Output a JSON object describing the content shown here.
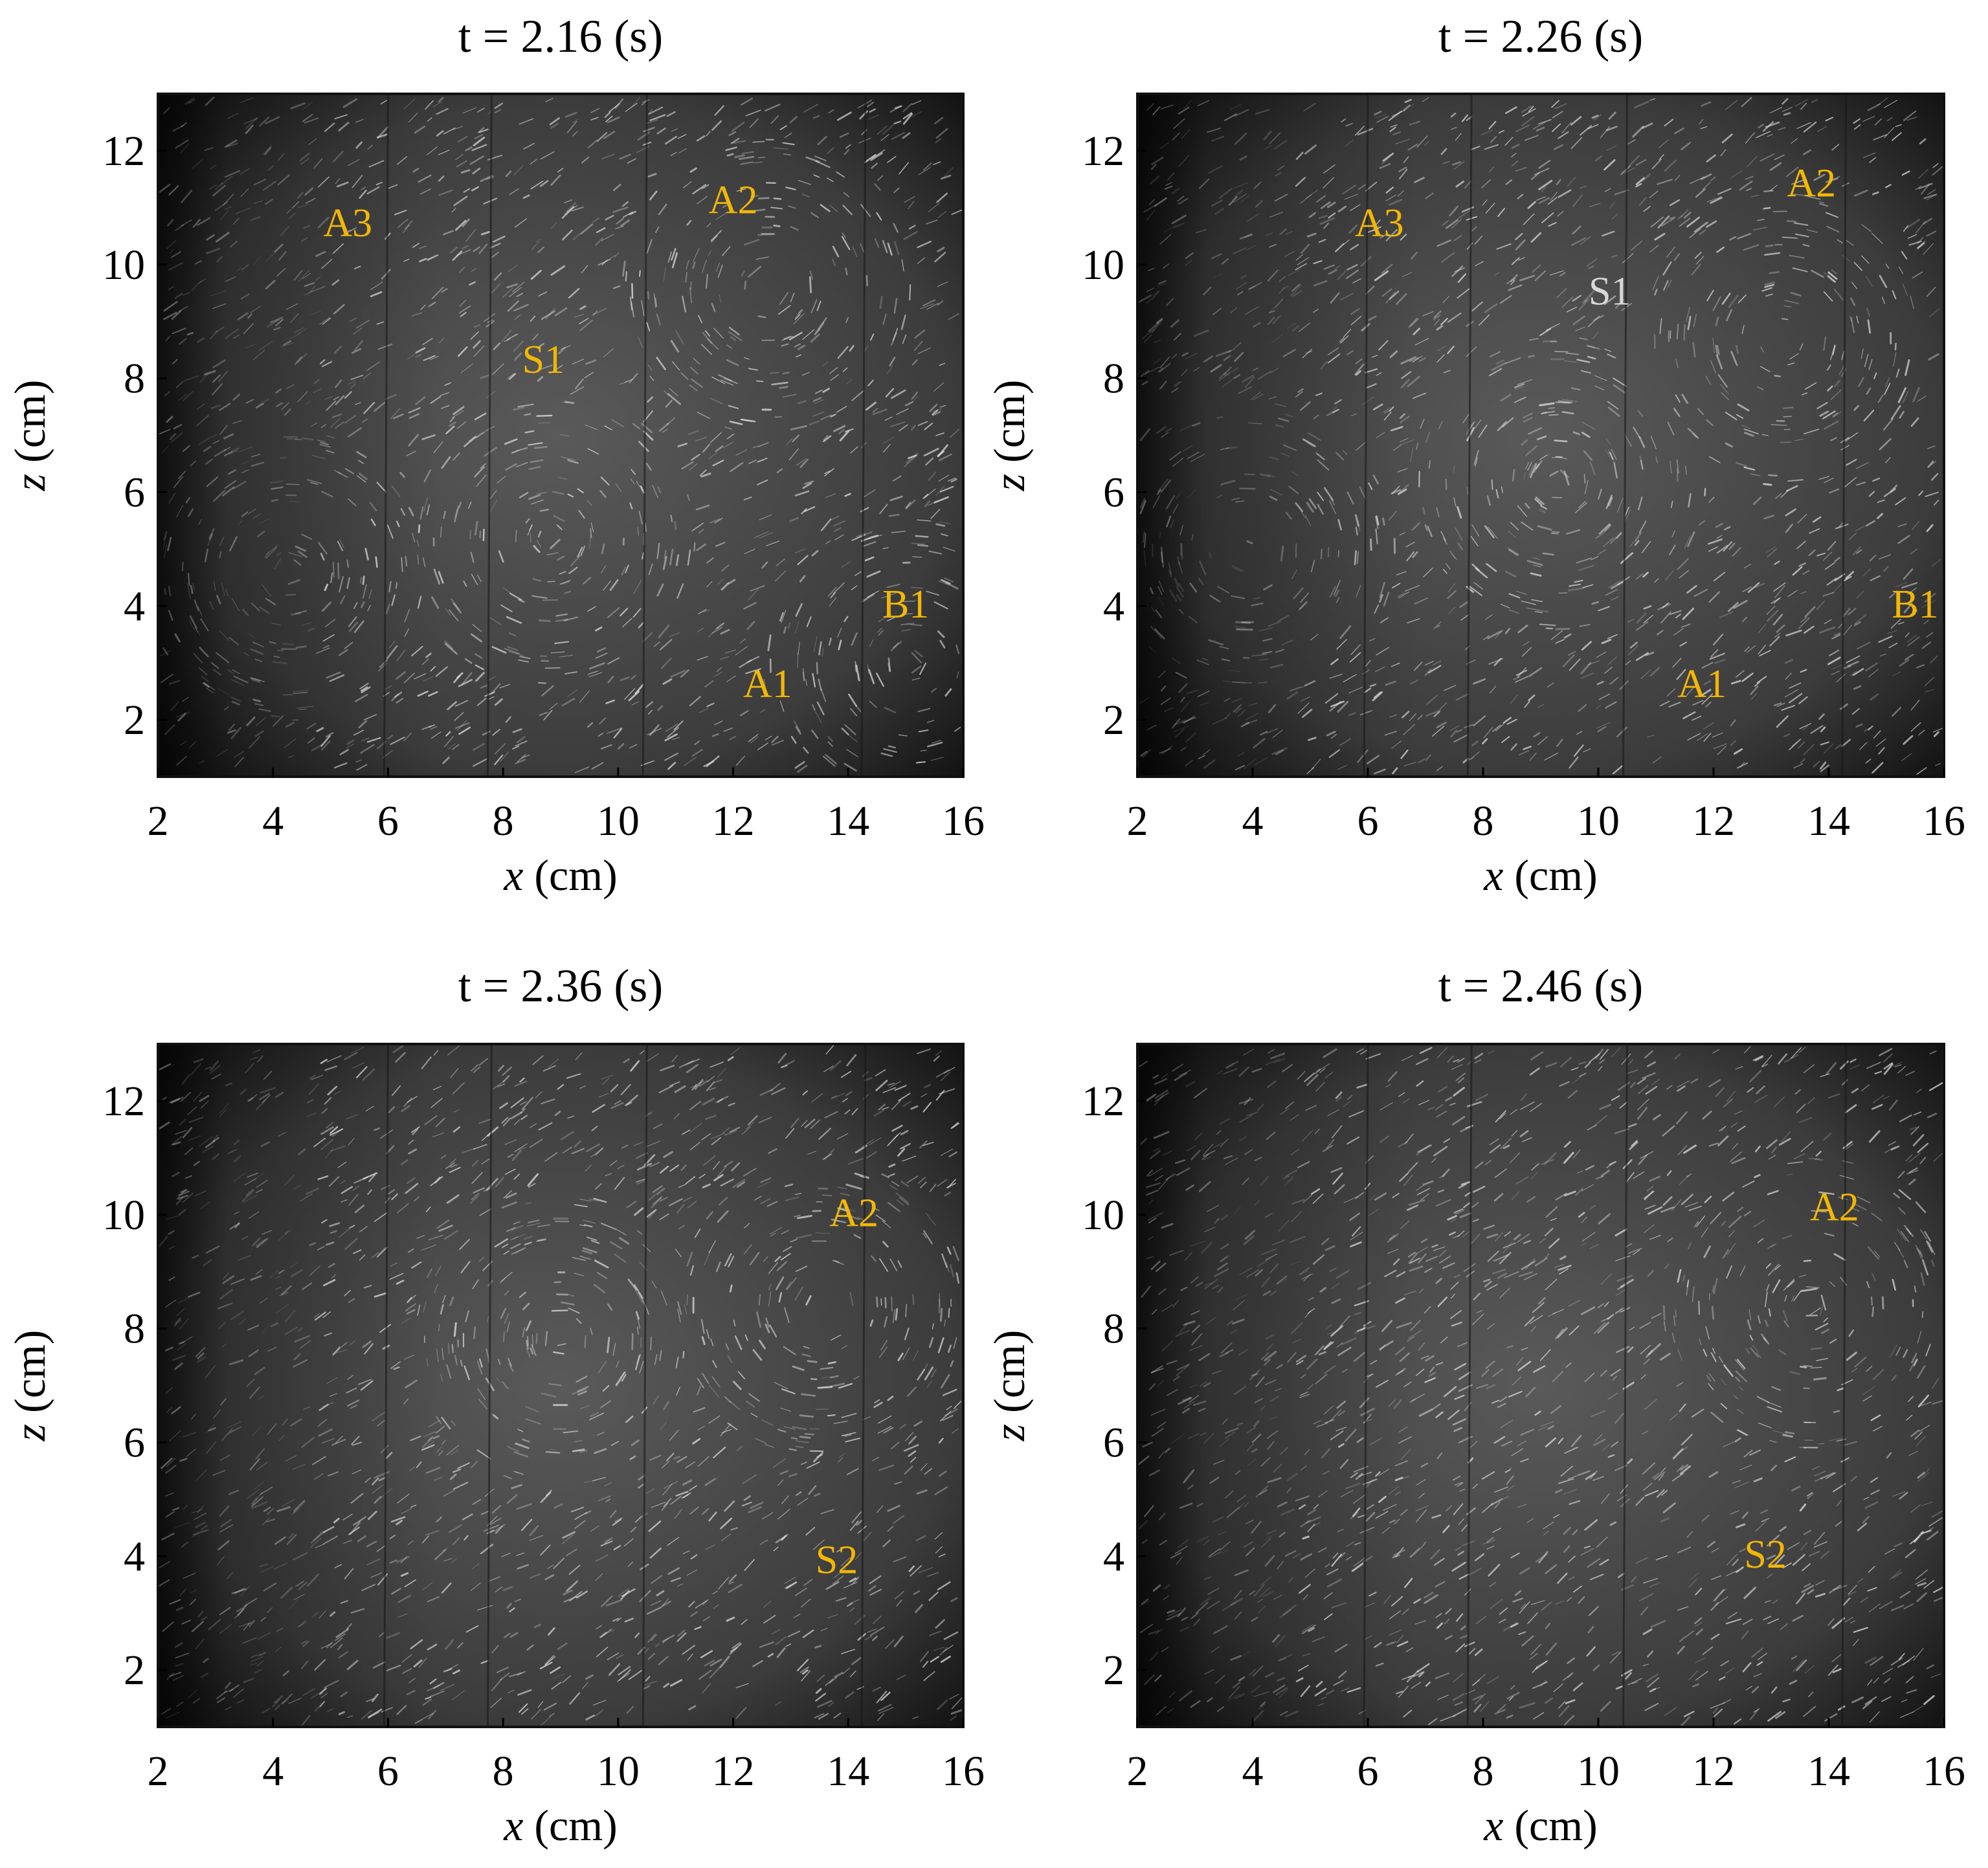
{
  "panels": [
    {
      "title": "t = 2.16  (s)",
      "x_ticks": [
        "2",
        "4",
        "6",
        "8",
        "10",
        "12",
        "14",
        "16"
      ],
      "z_ticks": [
        "2",
        "4",
        "6",
        "8",
        "10",
        "12"
      ],
      "xlabel_var": "x",
      "xlabel_unit": " (cm)",
      "ylabel_var": "z",
      "ylabel_unit": " (cm)",
      "labels": [
        {
          "text": "A3",
          "x": 5.3,
          "z": 10.5,
          "color": "#f2b705"
        },
        {
          "text": "A2",
          "x": 12.0,
          "z": 10.9,
          "color": "#f2b705"
        },
        {
          "text": "S1",
          "x": 8.7,
          "z": 8.1,
          "color": "#f2b705"
        },
        {
          "text": "B1",
          "x": 15.0,
          "z": 3.8,
          "color": "#f2b705"
        },
        {
          "text": "A1",
          "x": 12.6,
          "z": 2.4,
          "color": "#f2b705"
        }
      ],
      "vortices": [
        {
          "x": 12.6,
          "z": 9.6
        },
        {
          "x": 8.8,
          "z": 5.2
        },
        {
          "x": 15.1,
          "z": 3.0
        },
        {
          "x": 4.3,
          "z": 4.6
        }
      ]
    },
    {
      "title": "t = 2.26  (s)",
      "x_ticks": [
        "2",
        "4",
        "6",
        "8",
        "10",
        "12",
        "14",
        "16"
      ],
      "z_ticks": [
        "2",
        "4",
        "6",
        "8",
        "10",
        "12"
      ],
      "xlabel_var": "x",
      "xlabel_unit": " (cm)",
      "ylabel_var": "z",
      "ylabel_unit": " (cm)",
      "labels": [
        {
          "text": "A3",
          "x": 6.2,
          "z": 10.5,
          "color": "#f2b705"
        },
        {
          "text": "A2",
          "x": 13.7,
          "z": 11.2,
          "color": "#f2b705"
        },
        {
          "text": "S1",
          "x": 10.2,
          "z": 9.3,
          "color": "#d8d8d8"
        },
        {
          "text": "B1",
          "x": 15.5,
          "z": 3.8,
          "color": "#f2b705"
        },
        {
          "text": "A1",
          "x": 11.8,
          "z": 2.4,
          "color": "#f2b705"
        }
      ],
      "vortices": [
        {
          "x": 13.2,
          "z": 8.7
        },
        {
          "x": 9.3,
          "z": 6.2
        },
        {
          "x": 3.9,
          "z": 5.0
        }
      ]
    },
    {
      "title": "t = 2.36  (s)",
      "x_ticks": [
        "2",
        "4",
        "6",
        "8",
        "10",
        "12",
        "14",
        "16"
      ],
      "z_ticks": [
        "2",
        "4",
        "6",
        "8",
        "10",
        "12"
      ],
      "xlabel_var": "x",
      "xlabel_unit": " (cm)",
      "ylabel_var": "z",
      "ylabel_unit": " (cm)",
      "labels": [
        {
          "text": "A2",
          "x": 14.1,
          "z": 9.8,
          "color": "#f2b705"
        },
        {
          "text": "S2",
          "x": 13.8,
          "z": 3.7,
          "color": "#f2b705"
        }
      ],
      "vortices": [
        {
          "x": 13.5,
          "z": 8.4
        },
        {
          "x": 9.0,
          "z": 7.8
        }
      ]
    },
    {
      "title": "t = 2.46  (s)",
      "x_ticks": [
        "2",
        "4",
        "6",
        "8",
        "10",
        "12",
        "14",
        "16"
      ],
      "z_ticks": [
        "2",
        "4",
        "6",
        "8",
        "10",
        "12"
      ],
      "xlabel_var": "x",
      "xlabel_unit": " (cm)",
      "ylabel_var": "z",
      "ylabel_unit": " (cm)",
      "labels": [
        {
          "text": "A2",
          "x": 14.1,
          "z": 9.9,
          "color": "#f2b705"
        },
        {
          "text": "S2",
          "x": 12.9,
          "z": 3.8,
          "color": "#f2b705"
        }
      ],
      "vortices": [
        {
          "x": 13.7,
          "z": 8.4
        }
      ]
    }
  ],
  "axis_range": {
    "x": [
      2,
      16
    ],
    "z": [
      1,
      13
    ]
  },
  "colors": {
    "frame": "#111111",
    "image_bg": "#3a3a3a",
    "streak": "#e8e8e8",
    "label": "#f2b705"
  }
}
